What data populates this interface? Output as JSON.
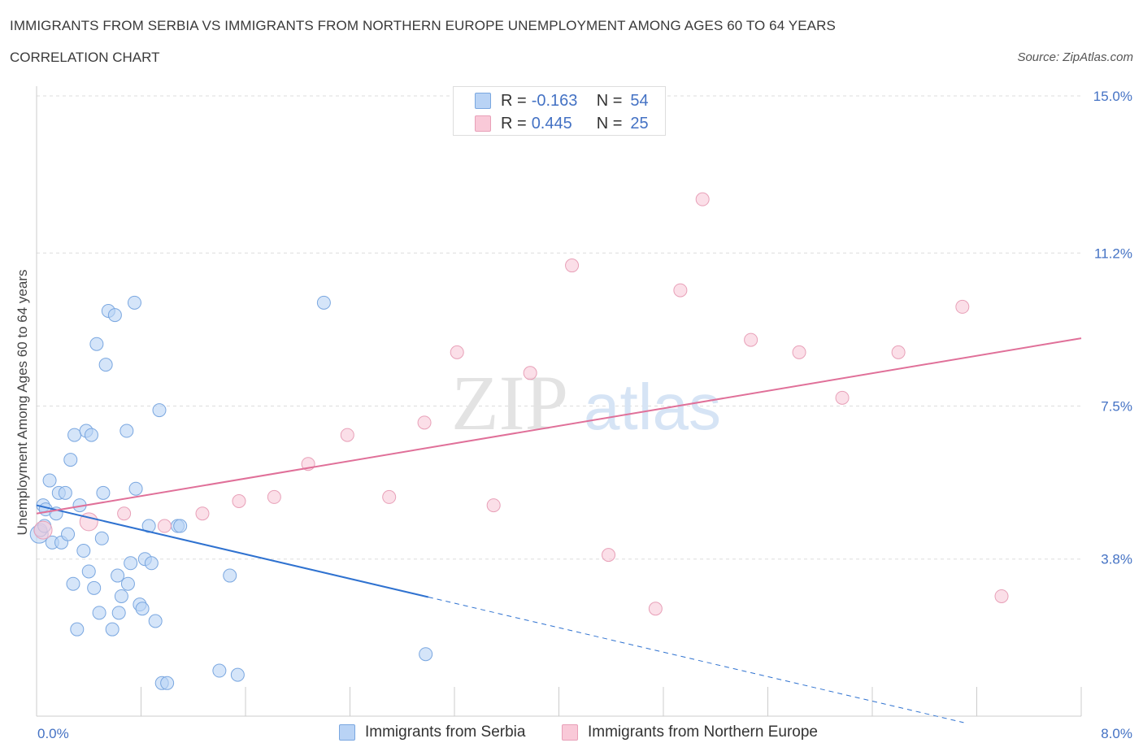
{
  "header": {
    "title": "IMMIGRANTS FROM SERBIA VS IMMIGRANTS FROM NORTHERN EUROPE UNEMPLOYMENT AMONG AGES 60 TO 64 YEARS",
    "subtitle": "CORRELATION CHART",
    "source": "Source: ZipAtlas.com"
  },
  "legend": {
    "rows": [
      {
        "r_label": "R =",
        "r_value": "-0.163",
        "n_label": "N =",
        "n_value": "54"
      },
      {
        "r_label": "R =",
        "r_value": "0.445",
        "n_label": "N =",
        "n_value": "25"
      }
    ]
  },
  "watermark": {
    "zip": "ZIP",
    "atlas": "atlas"
  },
  "colors": {
    "serbia_fill": "#b9d3f5",
    "serbia_stroke": "#7aa7e0",
    "serbia_line": "#2f72d0",
    "northern_fill": "#f9c9d8",
    "northern_stroke": "#e8a0b8",
    "northern_line": "#e07099",
    "axis_text": "#4472c4",
    "grid": "#dddddd"
  },
  "chart_data": {
    "type": "scatter",
    "title": "IMMIGRANTS FROM SERBIA VS IMMIGRANTS FROM NORTHERN EUROPE UNEMPLOYMENT AMONG AGES 60 TO 64 YEARS",
    "xlabel": "",
    "ylabel": "Unemployment Among Ages 60 to 64 years",
    "xlim": [
      0,
      8.0
    ],
    "ylim": [
      0,
      15.0
    ],
    "x_tick_labels": [
      "0.0%",
      "8.0%"
    ],
    "y_ticks": [
      3.8,
      7.5,
      11.2,
      15.0
    ],
    "y_tick_labels": [
      "3.8%",
      "7.5%",
      "11.2%",
      "15.0%"
    ],
    "grid": true,
    "legend_position": "top-center",
    "series": [
      {
        "name": "Immigrants from Serbia",
        "points": [
          [
            0.02,
            4.4
          ],
          [
            0.03,
            4.5
          ],
          [
            0.05,
            5.1
          ],
          [
            0.06,
            4.6
          ],
          [
            0.07,
            5.0
          ],
          [
            0.1,
            5.7
          ],
          [
            0.12,
            4.2
          ],
          [
            0.15,
            4.9
          ],
          [
            0.17,
            5.4
          ],
          [
            0.19,
            4.2
          ],
          [
            0.22,
            5.4
          ],
          [
            0.24,
            4.4
          ],
          [
            0.26,
            6.2
          ],
          [
            0.28,
            3.2
          ],
          [
            0.29,
            6.8
          ],
          [
            0.31,
            2.1
          ],
          [
            0.33,
            5.1
          ],
          [
            0.36,
            4.0
          ],
          [
            0.38,
            6.9
          ],
          [
            0.4,
            3.5
          ],
          [
            0.42,
            6.8
          ],
          [
            0.44,
            3.1
          ],
          [
            0.46,
            9.0
          ],
          [
            0.48,
            2.5
          ],
          [
            0.5,
            4.3
          ],
          [
            0.51,
            5.4
          ],
          [
            0.53,
            8.5
          ],
          [
            0.55,
            9.8
          ],
          [
            0.58,
            2.1
          ],
          [
            0.6,
            9.7
          ],
          [
            0.62,
            3.4
          ],
          [
            0.63,
            2.5
          ],
          [
            0.65,
            2.9
          ],
          [
            0.69,
            6.9
          ],
          [
            0.7,
            3.2
          ],
          [
            0.72,
            3.7
          ],
          [
            0.75,
            10.0
          ],
          [
            0.76,
            5.5
          ],
          [
            0.79,
            2.7
          ],
          [
            0.81,
            2.6
          ],
          [
            0.83,
            3.8
          ],
          [
            0.86,
            4.6
          ],
          [
            0.88,
            3.7
          ],
          [
            0.91,
            2.3
          ],
          [
            0.94,
            7.4
          ],
          [
            0.96,
            0.8
          ],
          [
            1.0,
            0.8
          ],
          [
            1.08,
            4.6
          ],
          [
            1.1,
            4.6
          ],
          [
            1.4,
            1.1
          ],
          [
            1.48,
            3.4
          ],
          [
            1.54,
            1.0
          ],
          [
            2.2,
            10.0
          ],
          [
            2.98,
            1.5
          ]
        ]
      },
      {
        "name": "Immigrants from Northern Europe",
        "points": [
          [
            0.05,
            4.5
          ],
          [
            0.4,
            4.7
          ],
          [
            0.67,
            4.9
          ],
          [
            0.98,
            4.6
          ],
          [
            1.27,
            4.9
          ],
          [
            1.55,
            5.2
          ],
          [
            1.82,
            5.3
          ],
          [
            2.08,
            6.1
          ],
          [
            2.38,
            6.8
          ],
          [
            2.7,
            5.3
          ],
          [
            2.97,
            7.1
          ],
          [
            3.22,
            8.8
          ],
          [
            3.5,
            5.1
          ],
          [
            3.78,
            8.3
          ],
          [
            4.1,
            10.9
          ],
          [
            4.38,
            3.9
          ],
          [
            4.74,
            2.6
          ],
          [
            4.93,
            10.3
          ],
          [
            5.1,
            12.5
          ],
          [
            5.47,
            9.1
          ],
          [
            5.84,
            8.8
          ],
          [
            6.17,
            7.7
          ],
          [
            6.6,
            8.8
          ],
          [
            7.09,
            9.9
          ],
          [
            7.39,
            2.9
          ]
        ]
      }
    ],
    "trendlines": [
      {
        "series": "Immigrants from Serbia",
        "x0": 0.0,
        "y0": 5.1,
        "x_solid_end": 3.0,
        "x_end": 7.1,
        "slope": -0.74
      },
      {
        "series": "Immigrants from Northern Europe",
        "x0": 0.0,
        "y0": 4.9,
        "x_end": 8.0,
        "slope": 0.53
      }
    ]
  }
}
